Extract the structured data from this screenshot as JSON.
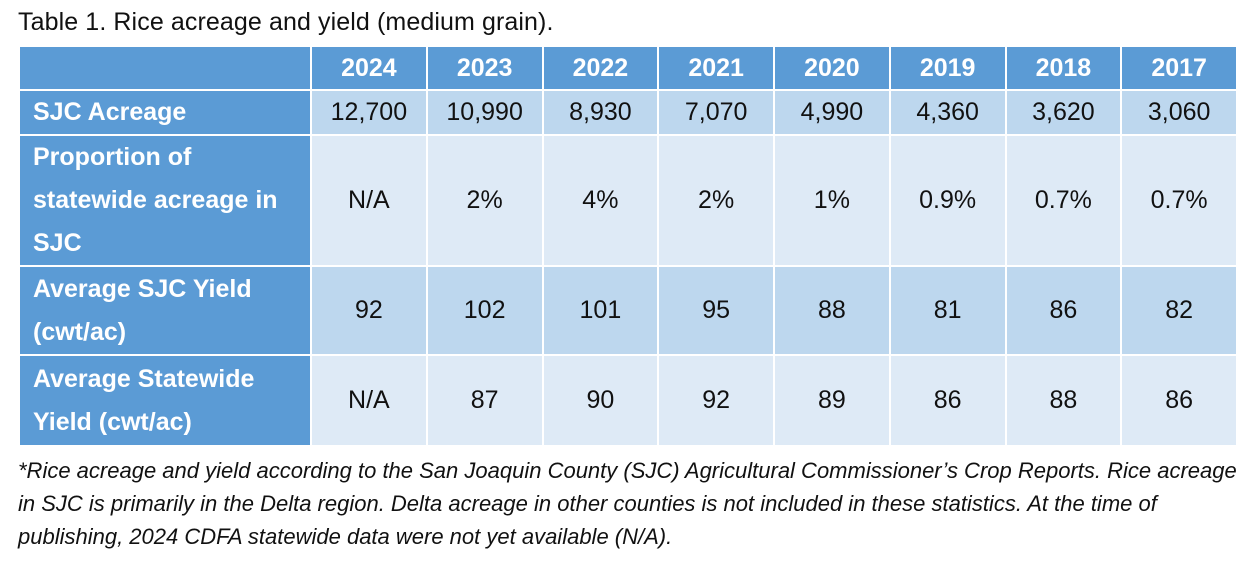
{
  "title": "Table 1. Rice acreage and yield (medium grain).",
  "table": {
    "columns": [
      "2024",
      "2023",
      "2022",
      "2021",
      "2020",
      "2019",
      "2018",
      "2017"
    ],
    "rows": [
      {
        "label": "SJC Acreage",
        "values": [
          "12,700",
          "10,990",
          "8,930",
          "7,070",
          "4,990",
          "4,360",
          "3,620",
          "3,060"
        ]
      },
      {
        "label": "Proportion of statewide acreage in SJC",
        "values": [
          "N/A",
          "2%",
          "4%",
          "2%",
          "1%",
          "0.9%",
          "0.7%",
          "0.7%"
        ]
      },
      {
        "label": "Average SJC Yield (cwt/ac)",
        "values": [
          "92",
          "102",
          "101",
          "95",
          "88",
          "81",
          "86",
          "82"
        ]
      },
      {
        "label": "Average Statewide Yield (cwt/ac)",
        "values": [
          "N/A",
          "87",
          "90",
          "92",
          "89",
          "86",
          "88",
          "86"
        ]
      }
    ]
  },
  "footnote": "*Rice acreage and yield according to the San Joaquin County (SJC) Agricultural Commissioner’s Crop Reports. Rice acreage in SJC is primarily in the Delta region. Delta acreage in other counties is not included in these statistics. At the time of publishing, 2024 CDFA statewide data were not yet available (N/A).",
  "colors": {
    "header-blue": "#5b9bd5",
    "band-dark": "#bdd7ee",
    "band-light": "#deeaf6",
    "grid-white": "#ffffff",
    "text-black": "#111111"
  }
}
